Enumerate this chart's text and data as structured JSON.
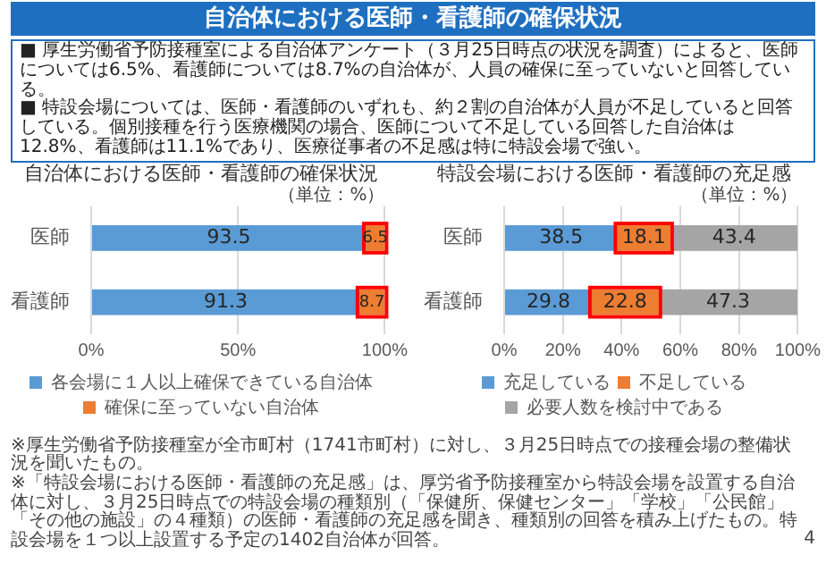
{
  "chart_data": [
    {
      "type": "other",
      "title": "自治体における医師・看護師の確保状況",
      "annotations": [
        "■ 厚生労働省予防接種室による自治体アンケート（３月25日時点の状況を調査）によると、医師については6.5%、看護師については8.7%の自治体が、人員の確保に至っていないと回答している。",
        "■ 特設会場については、医師・看護師のいずれも、約２割の自治体が人員が不足していると回答している。個別接種を行う医療機関の場合、医師について不足している回答した自治体は12.8%、看護師は11.1%であり、医療従事者の不足感は特に特設会場で強い。"
      ]
    },
    {
      "type": "bar",
      "orientation": "horizontal",
      "stacked": true,
      "title": "自治体における医師・看護師の確保状況",
      "categories": [
        "医師",
        "看護師"
      ],
      "series": [
        {
          "name": "各会場に１人以上確保できている自治体",
          "color": "#5b9bd5",
          "values": [
            93.5,
            91.3
          ]
        },
        {
          "name": "確保に至っていない自治体",
          "color": "#ed7d31",
          "values": [
            6.5,
            8.7
          ]
        }
      ],
      "xlim": [
        0,
        100
      ],
      "xticks": [
        {
          "value": 0,
          "label": "0%"
        },
        {
          "value": 50,
          "label": "50%"
        },
        {
          "value": 100,
          "label": "100%"
        }
      ],
      "grid": "x",
      "legend": "bottom",
      "data_labels": true,
      "annotations": [
        "（単位：%）"
      ]
    },
    {
      "type": "bar",
      "orientation": "horizontal",
      "stacked": true,
      "title": "特設会場における医師・看護師の充足感",
      "categories": [
        "医師",
        "看護師"
      ],
      "series": [
        {
          "name": "充足している",
          "color": "#5b9bd5",
          "values": [
            38.5,
            29.8
          ]
        },
        {
          "name": "不足している",
          "color": "#ed7d31",
          "values": [
            18.1,
            22.8
          ]
        },
        {
          "name": "必要人数を検討中である",
          "color": "#a5a5a5",
          "values": [
            43.4,
            47.3
          ]
        }
      ],
      "xlim": [
        0,
        100
      ],
      "xticks": [
        {
          "value": 0,
          "label": "0%"
        },
        {
          "value": 20,
          "label": "20%"
        },
        {
          "value": 40,
          "label": "40%"
        },
        {
          "value": 60,
          "label": "60%"
        },
        {
          "value": 80,
          "label": "80%"
        },
        {
          "value": 100,
          "label": "100%"
        }
      ],
      "grid": "x",
      "legend": "bottom",
      "data_labels": true,
      "annotations": [
        "（単位：%）"
      ]
    },
    {
      "type": "other",
      "annotations": [
        "※厚生労働省予防接種室が全市町村（1741市町村）に対し、３月25日時点での接種会場の整備状況を聞いたもの。",
        "※「特設会場における医師・看護師の充足感」は、厚労省予防接種室から特設会場を設置する自治体に対し、３月25日時点での特設会場の種類別（「保健所、保健センター」「学校」「公民館」「その他の施設」の４種類）の医師・看護師の充足感を聞き、種類別の回答を積み上げたもの。特設会場を１つ以上設置する予定の1402自治体が回答。",
        "4"
      ]
    }
  ]
}
